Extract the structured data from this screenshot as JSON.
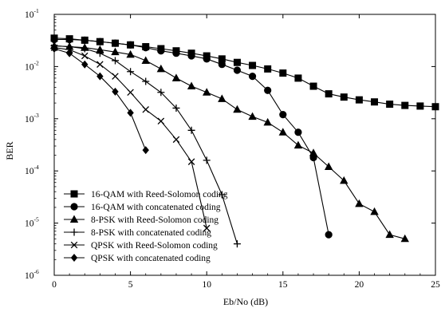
{
  "chart_data": {
    "type": "line",
    "title": "",
    "xlabel": "Eb/No (dB)",
    "ylabel": "BER",
    "x_scale": "linear",
    "y_scale": "log",
    "xlim": [
      0,
      25
    ],
    "ylim": [
      1e-06,
      0.1
    ],
    "x_ticks": [
      0,
      5,
      10,
      15,
      20,
      25
    ],
    "y_ticks": [
      {
        "value": 0.1,
        "base": "10",
        "exp": "-1"
      },
      {
        "value": 0.01,
        "base": "10",
        "exp": "-2"
      },
      {
        "value": 0.001,
        "base": "10",
        "exp": "-3"
      },
      {
        "value": 0.0001,
        "base": "10",
        "exp": "-4"
      },
      {
        "value": 1e-05,
        "base": "10",
        "exp": "-5"
      },
      {
        "value": 1e-06,
        "base": "10",
        "exp": "-6"
      }
    ],
    "grid": false,
    "legend_position": "bottom-left",
    "series": [
      {
        "name": "16-QAM with Reed-Solomon coding",
        "marker": "square",
        "x": [
          0,
          1,
          2,
          3,
          4,
          5,
          6,
          7,
          8,
          9,
          10,
          11,
          12,
          13,
          14,
          15,
          16,
          17,
          18,
          19,
          20,
          21,
          22,
          23,
          24,
          25
        ],
        "y": [
          0.035,
          0.034,
          0.032,
          0.03,
          0.028,
          0.026,
          0.024,
          0.022,
          0.02,
          0.018,
          0.016,
          0.014,
          0.012,
          0.0105,
          0.009,
          0.0075,
          0.006,
          0.0042,
          0.003,
          0.0026,
          0.0023,
          0.0021,
          0.0019,
          0.0018,
          0.00175,
          0.0017
        ]
      },
      {
        "name": "16-QAM with concatenated coding",
        "marker": "circle",
        "x": [
          0,
          1,
          2,
          3,
          4,
          5,
          6,
          7,
          8,
          9,
          10,
          11,
          12,
          13,
          14,
          15,
          16,
          17,
          18
        ],
        "y": [
          0.033,
          0.033,
          0.032,
          0.03,
          0.028,
          0.026,
          0.023,
          0.02,
          0.018,
          0.016,
          0.014,
          0.011,
          0.0085,
          0.0065,
          0.0035,
          0.0012,
          0.00055,
          0.00018,
          6e-06
        ]
      },
      {
        "name": "8-PSK with Reed-Solomon coding",
        "marker": "triangle",
        "x": [
          0,
          1,
          2,
          3,
          4,
          5,
          6,
          7,
          8,
          9,
          10,
          11,
          12,
          13,
          14,
          15,
          16,
          17,
          18,
          19,
          20,
          21,
          22,
          23
        ],
        "y": [
          0.025,
          0.024,
          0.023,
          0.021,
          0.019,
          0.017,
          0.013,
          0.009,
          0.006,
          0.0042,
          0.0032,
          0.0024,
          0.0015,
          0.0011,
          0.00085,
          0.00055,
          0.00031,
          0.00022,
          0.00012,
          6.5e-05,
          2.35e-05,
          1.65e-05,
          6e-06,
          5e-06
        ]
      },
      {
        "name": "8-PSK with concatenated coding",
        "marker": "plus",
        "x": [
          0,
          1,
          2,
          3,
          4,
          5,
          6,
          7,
          8,
          9,
          10,
          11,
          12
        ],
        "y": [
          0.025,
          0.024,
          0.022,
          0.018,
          0.013,
          0.008,
          0.0052,
          0.0032,
          0.0016,
          0.0006,
          0.00016,
          3.5e-05,
          4e-06
        ]
      },
      {
        "name": "QPSK with Reed-Solomon coding",
        "marker": "x",
        "x": [
          0,
          1,
          2,
          3,
          4,
          5,
          6,
          7,
          8,
          9,
          10
        ],
        "y": [
          0.023,
          0.021,
          0.016,
          0.011,
          0.0065,
          0.0032,
          0.0015,
          0.0009,
          0.0004,
          0.00015,
          8e-06
        ]
      },
      {
        "name": "QPSK with concatenated coding",
        "marker": "diamond",
        "x": [
          0,
          1,
          2,
          3,
          4,
          5,
          6
        ],
        "y": [
          0.022,
          0.018,
          0.011,
          0.0065,
          0.0033,
          0.0013,
          0.00025
        ]
      }
    ]
  }
}
